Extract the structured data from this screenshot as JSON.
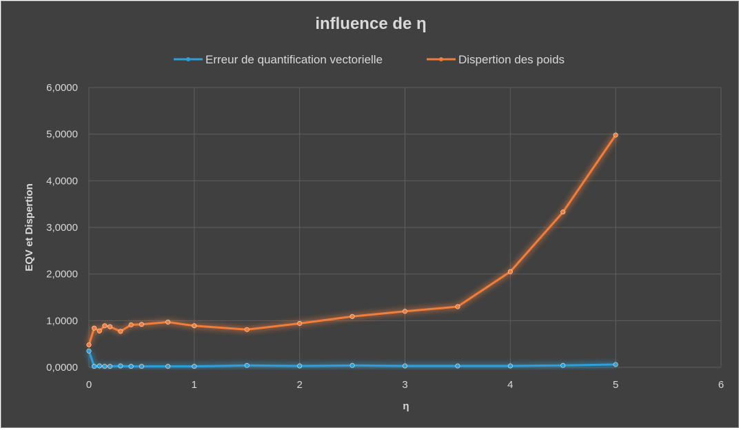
{
  "chart_data": {
    "type": "line",
    "title": "influence de η",
    "xlabel": "η",
    "ylabel": "EQV et Dispertion",
    "xlim": [
      0,
      6
    ],
    "ylim": [
      0,
      6
    ],
    "x_ticks": [
      "0",
      "1",
      "2",
      "3",
      "4",
      "5",
      "6"
    ],
    "y_ticks": [
      "0,0000",
      "1,0000",
      "2,0000",
      "3,0000",
      "4,0000",
      "5,0000",
      "6,0000"
    ],
    "grid": true,
    "legend_position": "top",
    "background": "#404040",
    "series": [
      {
        "name": "Erreur de quantification vectorielle",
        "color": "#2e9fd8",
        "points": [
          [
            0,
            0.35
          ],
          [
            0.05,
            0.02
          ],
          [
            0.1,
            0.03
          ],
          [
            0.15,
            0.02
          ],
          [
            0.2,
            0.02
          ],
          [
            0.3,
            0.03
          ],
          [
            0.4,
            0.02
          ],
          [
            0.5,
            0.02
          ],
          [
            0.75,
            0.02
          ],
          [
            1,
            0.02
          ],
          [
            1.5,
            0.04
          ],
          [
            2,
            0.03
          ],
          [
            2.5,
            0.04
          ],
          [
            3,
            0.03
          ],
          [
            3.5,
            0.03
          ],
          [
            4,
            0.03
          ],
          [
            4.5,
            0.04
          ],
          [
            5,
            0.06
          ]
        ]
      },
      {
        "name": "Dispertion des poids",
        "color": "#f07d3c",
        "points": [
          [
            0,
            0.48
          ],
          [
            0.05,
            0.84
          ],
          [
            0.1,
            0.78
          ],
          [
            0.15,
            0.89
          ],
          [
            0.2,
            0.87
          ],
          [
            0.3,
            0.77
          ],
          [
            0.4,
            0.91
          ],
          [
            0.5,
            0.92
          ],
          [
            0.75,
            0.97
          ],
          [
            1,
            0.89
          ],
          [
            1.5,
            0.81
          ],
          [
            2,
            0.94
          ],
          [
            2.5,
            1.09
          ],
          [
            3,
            1.2
          ],
          [
            3.5,
            1.3
          ],
          [
            4,
            2.05
          ],
          [
            4.5,
            3.33
          ],
          [
            5,
            4.98
          ]
        ]
      }
    ]
  }
}
